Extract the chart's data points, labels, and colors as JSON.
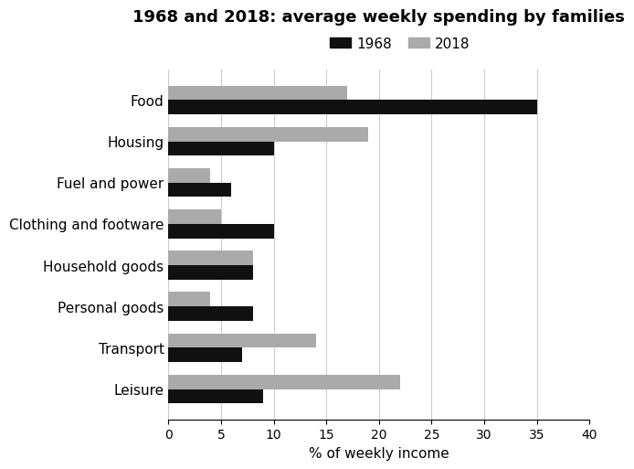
{
  "title": "1968 and 2018: average weekly spending by families",
  "categories": [
    "Food",
    "Housing",
    "Fuel and power",
    "Clothing and footware",
    "Household goods",
    "Personal goods",
    "Transport",
    "Leisure"
  ],
  "values_1968": [
    35,
    10,
    6,
    10,
    8,
    8,
    7,
    9
  ],
  "values_2018": [
    17,
    19,
    4,
    5,
    8,
    4,
    14,
    22
  ],
  "color_1968": "#111111",
  "color_2018": "#aaaaaa",
  "xlabel": "% of weekly income",
  "xlim": [
    0,
    40
  ],
  "xticks": [
    0,
    5,
    10,
    15,
    20,
    25,
    30,
    35,
    40
  ],
  "legend_labels": [
    "1968",
    "2018"
  ],
  "bar_height": 0.35,
  "title_fontsize": 13,
  "label_fontsize": 11,
  "tick_fontsize": 10,
  "background_color": "#ffffff"
}
